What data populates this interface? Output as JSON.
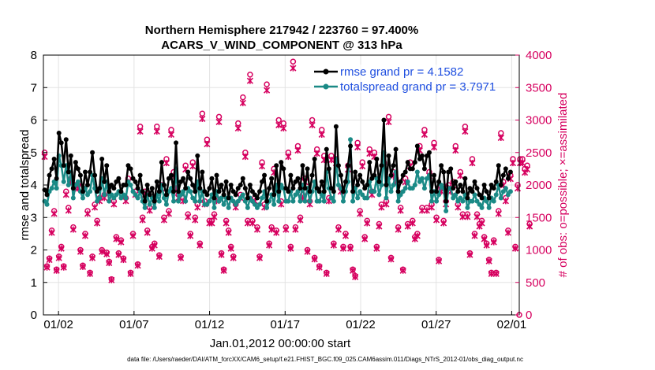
{
  "chart_data": {
    "type": "line",
    "title_line1": "Northern Hemisphere 217942 / 223760 = 97.400%",
    "title_line2": "ACARS_V_WIND_COMPONENT @ 313 hPa",
    "xlabel": "Jan.01,2012 00:00:00 start",
    "ylabel_left": "rmse and totalspread",
    "ylabel_right": "# of obs: o=possible; ×=assimilated",
    "footer": "data file: /Users/raeder/DAI/ATM_forcXX/CAM6_setup/f.e21.FHIST_BGC.f09_025.CAM6assim.011/Diags_NTrS_2012-01/obs_diag_output.nc",
    "x_tick_labels": [
      "01/02",
      "01/07",
      "01/12",
      "01/17",
      "01/22",
      "01/27",
      "02/01"
    ],
    "x_tick_days": [
      1,
      6,
      11,
      16,
      21,
      26,
      31
    ],
    "xlim_days": [
      0,
      31.5
    ],
    "ylim_left": [
      0,
      8
    ],
    "y_ticks_left": [
      "0",
      "1",
      "2",
      "3",
      "4",
      "5",
      "6",
      "7",
      "8"
    ],
    "ylim_right": [
      0,
      4000
    ],
    "y_ticks_right": [
      "0",
      "500",
      "1000",
      "1500",
      "2000",
      "2500",
      "3000",
      "3500",
      "4000"
    ],
    "series": [
      {
        "name": "rmse grand pr = 4.1582",
        "color": "#000000",
        "values": [
          3.85,
          3.7,
          4.3,
          4.5,
          4.8,
          4.2,
          5.6,
          5.3,
          4.6,
          5.4,
          4.4,
          4.9,
          3.9,
          4.7,
          4.5,
          4.3,
          3.8,
          4.4,
          4.0,
          4.4,
          5.0,
          4.3,
          3.8,
          3.9,
          4.8,
          4.1,
          4.6,
          3.8,
          4.0,
          3.9,
          4.1,
          4.2,
          3.8,
          4.0,
          4.0,
          4.6,
          4.5,
          4.2,
          4.1,
          3.9,
          4.3,
          3.8,
          3.5,
          4.0,
          3.7,
          3.9,
          3.5,
          4.1,
          3.8,
          4.7,
          4.0,
          3.7,
          4.2,
          4.3,
          3.8,
          5.3,
          3.8,
          4.1,
          4.2,
          3.9,
          4.4,
          4.2,
          4.0,
          3.8,
          4.9,
          3.9,
          4.4,
          3.8,
          3.7,
          3.9,
          4.2,
          3.6,
          4.3,
          3.8,
          4.0,
          3.7,
          4.1,
          3.6,
          4.0,
          3.8,
          3.7,
          3.9,
          4.0,
          4.2,
          3.9,
          3.6,
          4.0,
          3.8,
          3.7,
          3.6,
          3.8,
          4.1,
          4.3,
          3.5,
          3.9,
          4.2,
          3.7,
          4.6,
          3.8,
          4.7,
          4.5,
          3.9,
          3.8,
          4.3,
          3.9,
          4.1,
          4.2,
          3.9,
          4.6,
          3.9,
          4.5,
          3.8,
          4.3,
          4.8,
          3.9,
          3.8,
          4.1,
          3.8,
          5.1,
          4.5,
          3.9,
          3.8,
          5.8,
          4.6,
          4.3,
          3.8,
          4.1,
          4.6,
          5.2,
          3.8,
          4.4,
          4.0,
          4.3,
          4.1,
          3.9,
          4.0,
          4.7,
          4.2,
          4.3,
          4.8,
          4.1,
          4.6,
          6.0,
          4.0,
          4.9,
          4.3,
          4.6,
          5.1,
          3.8,
          4.1,
          4.3,
          4.4,
          4.7,
          4.5,
          4.5,
          4.7,
          5.2,
          4.8,
          4.9,
          4.5,
          4.9,
          5.0,
          3.8,
          4.3,
          3.8,
          4.1,
          4.6,
          4.4,
          3.5,
          4.4,
          4.5,
          3.9,
          4.1,
          3.8,
          4.0,
          3.8,
          4.2,
          3.6,
          3.9,
          3.8,
          4.1,
          3.9,
          3.7,
          3.6,
          4.0,
          3.8,
          3.6,
          4.0,
          3.9,
          4.1,
          4.6,
          4.0,
          4.3,
          4.5,
          4.2,
          4.4
        ]
      },
      {
        "name": "totalspread grand pr = 3.7971",
        "color": "#1a8a86",
        "values": [
          3.5,
          3.4,
          3.8,
          3.9,
          4.1,
          3.9,
          4.9,
          4.6,
          4.1,
          4.6,
          4.0,
          4.4,
          3.6,
          4.0,
          4.1,
          3.8,
          3.6,
          3.9,
          3.7,
          3.8,
          4.3,
          3.9,
          3.5,
          3.6,
          4.2,
          3.7,
          4.1,
          3.5,
          3.7,
          3.6,
          3.7,
          3.8,
          3.6,
          3.7,
          3.6,
          4.1,
          4.0,
          3.8,
          3.7,
          3.6,
          3.8,
          3.5,
          3.3,
          3.7,
          3.4,
          3.6,
          3.3,
          3.7,
          3.5,
          4.0,
          3.6,
          3.4,
          3.8,
          3.9,
          3.5,
          4.5,
          3.5,
          3.7,
          3.8,
          3.5,
          3.9,
          3.8,
          3.6,
          3.5,
          4.1,
          3.5,
          3.8,
          3.4,
          3.4,
          3.5,
          3.7,
          3.3,
          3.8,
          3.5,
          3.6,
          3.4,
          3.6,
          3.3,
          3.6,
          3.5,
          3.4,
          3.5,
          3.6,
          3.7,
          3.5,
          3.3,
          3.6,
          3.5,
          3.4,
          3.3,
          3.4,
          3.6,
          3.8,
          3.3,
          3.5,
          3.7,
          3.4,
          4.0,
          3.5,
          4.0,
          3.9,
          3.5,
          3.5,
          3.8,
          3.5,
          3.7,
          3.8,
          3.5,
          4.0,
          3.5,
          3.9,
          3.5,
          3.8,
          4.1,
          3.5,
          3.5,
          3.7,
          3.5,
          4.4,
          3.9,
          3.6,
          3.5,
          4.8,
          4.0,
          3.9,
          3.5,
          3.8,
          4.1,
          5.4,
          3.5,
          3.9,
          3.6,
          3.8,
          3.7,
          3.6,
          3.6,
          4.1,
          3.8,
          3.8,
          4.2,
          3.7,
          4.0,
          5.0,
          3.6,
          4.2,
          3.8,
          4.0,
          4.4,
          3.5,
          3.7,
          3.8,
          3.9,
          4.1,
          3.9,
          3.9,
          4.0,
          4.4,
          4.1,
          4.2,
          3.9,
          4.2,
          4.3,
          3.5,
          3.8,
          3.5,
          3.7,
          4.0,
          3.9,
          3.2,
          3.9,
          3.9,
          3.6,
          3.7,
          3.5,
          3.6,
          3.5,
          3.7,
          3.3,
          3.5,
          3.5,
          3.7,
          3.5,
          3.4,
          3.3,
          3.6,
          3.5,
          3.3,
          3.6,
          3.5,
          3.7,
          4.0,
          3.6,
          3.8,
          3.9,
          3.7,
          3.8
        ]
      }
    ],
    "obs_possible": [
      2500,
      750,
      870,
      1300,
      1600,
      700,
      900,
      1050,
      750,
      1900,
      1650,
      2100,
      1350,
      2000,
      2000,
      1000,
      760,
      1250,
      1600,
      650,
      900,
      1700,
      1450,
      1800,
      1000,
      1850,
      960,
      820,
      550,
      1750,
      1200,
      950,
      1150,
      870,
      1800,
      2100,
      650,
      1250,
      1900,
      780,
      2900,
      1500,
      1900,
      1300,
      1650,
      1050,
      1100,
      2900,
      920,
      2000,
      1500,
      2400,
      1600,
      2850,
      2200,
      2000,
      1850,
      900,
      1800,
      2300,
      1550,
      1250,
      2350,
      1500,
      1700,
      1100,
      3100,
      1750,
      2700,
      1450,
      1450,
      1550,
      1800,
      3050,
      950,
      700,
      1450,
      1300,
      1050,
      900,
      1700,
      2950,
      1850,
      3350,
      2500,
      1450,
      3700,
      1450,
      1800,
      1350,
      900,
      2350,
      1700,
      3550,
      1100,
      1350,
      2250,
      1300,
      3000,
      1750,
      2950,
      1350,
      2500,
      1050,
      3900,
      1350,
      2600,
      1500,
      1850,
      2100,
      1000,
      1750,
      3000,
      880,
      2550,
      750,
      2850,
      2450,
      650,
      1800,
      2450,
      1100,
      2400,
      1350,
      1950,
      1050,
      1250,
      2300,
      1050,
      700,
      600,
      2650,
      1600,
      2350,
      1200,
      1450,
      2550,
      1900,
      2500,
      1050,
      1400,
      1700,
      2350,
      1750,
      3050,
      880,
      2200,
      2100,
      1350,
      1650,
      700,
      2100,
      1400,
      2350,
      1450,
      1200,
      1250,
      2600,
      1650,
      2850,
      1650,
      2200,
      1700,
      2650,
      1500,
      850,
      1950,
      1450,
      1750,
      2000,
      1950,
      2050,
      2600,
      1700,
      2200,
      1550,
      2900,
      1550,
      950,
      2400,
      1250,
      1550,
      1400,
      1450,
      1200,
      1100,
      850,
      650,
      1150,
      650,
      1600,
      2800,
      2050,
      1800,
      1300,
      2150,
      2400,
      1050,
      2000,
      2400,
      2400,
      2250,
      2300,
      1400
    ],
    "obs_assimilated_ratio": 0.974
  }
}
